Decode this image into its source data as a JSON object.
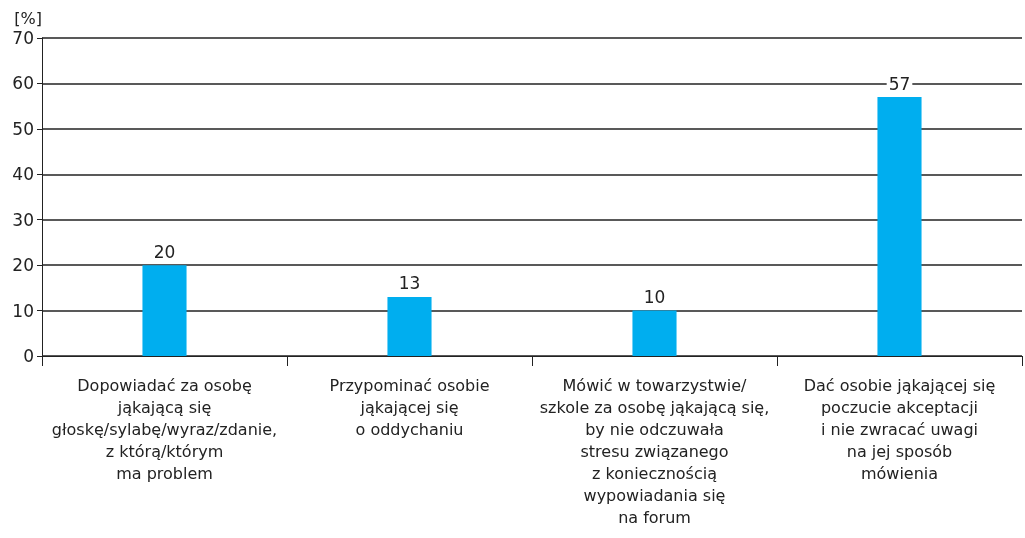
{
  "chart_data": {
    "type": "bar",
    "ylabel": "[%]",
    "categories": [
      "Dopowiadać za osobę\njąkającą się\ngłoskę/sylabę/wyraz/zdanie,\nz którą/którym\nma problem",
      "Przypominać osobie\njąkającej się\no oddychaniu",
      "Mówić w towarzystwie/\nszkole za osobę jąkającą się,\nby nie odczuwała\nstresu związanego\nz koniecznością\nwypowiadania się\nna forum",
      "Dać osobie jąkającej się\npoczucie akceptacji\ni nie zwracać uwagi\nna jej sposób\nmówienia"
    ],
    "values": [
      20,
      13,
      10,
      57
    ],
    "color": "#00aeef",
    "ylim": [
      0,
      70
    ],
    "yticks": [
      0,
      10,
      20,
      30,
      40,
      50,
      60,
      70
    ],
    "grid": "y",
    "data_labels": true
  }
}
